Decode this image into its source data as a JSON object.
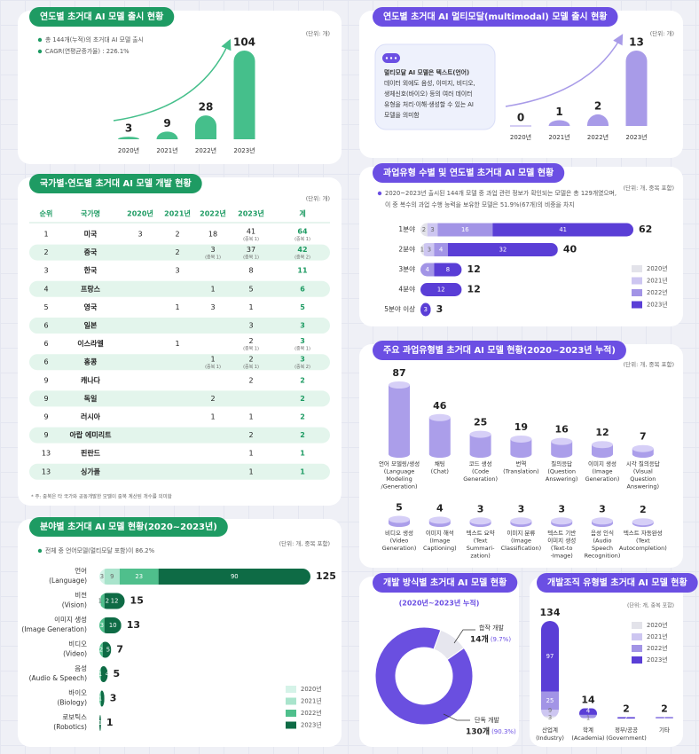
{
  "chart_data": [
    {
      "type": "bar",
      "title": "연도별 초거대 AI 모델 출시 현황",
      "unit": "(단위: 개)",
      "accent": "#1e9b63",
      "notes": [
        "총 144개(누적)의 초거대 AI 모델 출시",
        "CAGR(연평균증가율) : 226.1%"
      ],
      "categories": [
        "2020년",
        "2021년",
        "2022년",
        "2023년"
      ],
      "values": [
        3,
        9,
        28,
        104
      ],
      "color": "#45bf8b"
    },
    {
      "type": "bar",
      "title": "연도별 초거대 AI 멀티모달(multimodal) 모델 출시 현황",
      "unit": "(단위: 개)",
      "accent": "#6b4fe3",
      "info": [
        "멀티모달 AI 모델은 텍스트(언어)",
        "데이터 외에도 음성, 이미지, 비디오,",
        "생체신호(바이오) 등의 여러 데이터",
        "유형을 처리·이해·생성할 수 있는 AI",
        "모델을 의미함"
      ],
      "categories": [
        "2020년",
        "2021년",
        "2022년",
        "2023년"
      ],
      "values": [
        0,
        1,
        2,
        13
      ],
      "color": "#a89be8"
    },
    {
      "type": "stacked-barh",
      "title": "분야별 초거대 AI 모델 현황(2020~2023년)",
      "unit": "(단위: 개, 중복 포함)",
      "accent": "#1e9b63",
      "notes": [
        "전체 중 언어모델(멀티모달 포함)이 86.2%"
      ],
      "categories": [
        "언어",
        "비전",
        "이미지 생성",
        "비디오",
        "음성",
        "바이오",
        "로보틱스"
      ],
      "categories_en": [
        "(Language)",
        "(Vision)",
        "(Image Generation)",
        "(Video)",
        "(Audio & Speech)",
        "(Biology)",
        "(Robotics)"
      ],
      "series": [
        {
          "name": "2020년",
          "color": "#d5f3e8",
          "values": [
            3,
            null,
            null,
            null,
            null,
            null,
            null
          ]
        },
        {
          "name": "2021년",
          "color": "#a9e4cc",
          "values": [
            9,
            1,
            null,
            null,
            null,
            null,
            null
          ]
        },
        {
          "name": "2022년",
          "color": "#4fbf8c",
          "values": [
            23,
            2,
            3,
            2,
            1,
            1,
            null
          ]
        },
        {
          "name": "2023년",
          "color": "#0e6b45",
          "values": [
            90,
            12,
            10,
            5,
            4,
            2,
            1
          ]
        }
      ],
      "totals": [
        125,
        15,
        13,
        7,
        5,
        3,
        1
      ]
    },
    {
      "type": "stacked-barh",
      "title": "과업유형 수별 및 연도별 초거대 AI 모델 현황",
      "unit": "(단위: 개, 중복 포함)",
      "accent": "#6b4fe3",
      "notes": [
        "2020~2023년 출시된 144개 모델 중 과업 관련 정보가 확인되는 모델은 총 129개였으며,",
        "이 중 복수의 과업 수행 능력을 보유한 모델은 51.9%(67개)의 비중을 차지"
      ],
      "categories": [
        "1분야",
        "2분야",
        "3분야",
        "4분야",
        "5분야 이상"
      ],
      "series": [
        {
          "name": "2020년",
          "color": "#e3e3ea",
          "values": [
            2,
            1,
            null,
            null,
            null
          ]
        },
        {
          "name": "2021년",
          "color": "#cdc6f1",
          "values": [
            3,
            3,
            null,
            null,
            null
          ]
        },
        {
          "name": "2022년",
          "color": "#a294e6",
          "values": [
            16,
            4,
            4,
            null,
            null
          ]
        },
        {
          "name": "2023년",
          "color": "#5a3ed6",
          "values": [
            41,
            32,
            8,
            12,
            3
          ]
        }
      ],
      "totals": [
        62,
        40,
        12,
        12,
        3
      ]
    },
    {
      "type": "cylinder",
      "title": "주요 과업유형별 초거대 AI 모델 현황(2020~2023년 누적)",
      "unit": "(단위: 개, 중복 포함)",
      "accent": "#6b4fe3",
      "color": "#ab9eea",
      "top_color": "#d6cff7",
      "categories": [
        [
          "언어 모델링/생성",
          "(Language",
          "Modeling",
          "/Generation)"
        ],
        [
          "채팅",
          "(Chat)"
        ],
        [
          "코드 생성",
          "(Code",
          "Generation)"
        ],
        [
          "번역",
          "(Translation)"
        ],
        [
          "질의응답",
          "(Question",
          "Answering)"
        ],
        [
          "이미지 생성",
          "(Image",
          "Generation)"
        ],
        [
          "시각 질의응답",
          "(Visual",
          "Question",
          "Answering)"
        ],
        [
          "비디오 생성",
          "(Video",
          "Generation)"
        ],
        [
          "이미지 해석",
          "(Image",
          "Captioning)"
        ],
        [
          "텍스트 요약",
          "(Text",
          "Summari-",
          "zation)"
        ],
        [
          "이미지 분류",
          "(Image",
          "Classification)"
        ],
        [
          "텍스트 기반",
          "이미지 생성",
          "(Text-to",
          "-Image)"
        ],
        [
          "음성 인식",
          "(Audio",
          "Speech",
          "Recognition)"
        ],
        [
          "텍스트 자동완성",
          "(Text",
          "Autocompletion)"
        ]
      ],
      "values": [
        87,
        46,
        25,
        19,
        16,
        12,
        7,
        5,
        4,
        3,
        3,
        3,
        3,
        2
      ]
    },
    {
      "type": "donut",
      "title": "개발 방식별 초거대 AI 모델 현황",
      "subtitle": "(2020년~2023년 누적)",
      "accent": "#6b4fe3",
      "categories": [
        "합작 개발",
        "단독 개발"
      ],
      "values": [
        14,
        130
      ],
      "value_labels": [
        "14개",
        "130개"
      ],
      "shares": [
        9.7,
        90.3
      ],
      "share_labels": [
        "(9.7%)",
        "(90.3%)"
      ],
      "colors": [
        "#e6e6ee",
        "#6a4fe0"
      ]
    },
    {
      "type": "stacked-column",
      "title": "개발조직 유형별 초거대 AI 모델 현황",
      "unit": "(단위: 개, 중복 포함)",
      "accent": "#6b4fe3",
      "categories": [
        "산업계",
        "학계",
        "정부/공공",
        "기타"
      ],
      "categories_en": [
        "(Industry)",
        "(Academia)",
        "(Government)",
        null
      ],
      "series": [
        {
          "name": "2020년",
          "color": "#e3e3ea",
          "values": [
            3,
            null,
            null,
            null
          ]
        },
        {
          "name": "2021년",
          "color": "#cdc6f1",
          "values": [
            9,
            1,
            null,
            null
          ]
        },
        {
          "name": "2022년",
          "color": "#a294e6",
          "values": [
            25,
            4,
            null,
            1
          ]
        },
        {
          "name": "2023년",
          "color": "#5a3ed6",
          "values": [
            97,
            9,
            2,
            1
          ]
        }
      ],
      "totals": [
        134,
        14,
        2,
        2
      ]
    }
  ],
  "country_table": {
    "title": "국가별·연도별 초거대 AI 모델 개발 현황",
    "unit": "(단위: 개)",
    "accent": "#1e9b63",
    "header": [
      "순위",
      "국가명",
      "2020년",
      "2021년",
      "2022년",
      "2023년",
      "계"
    ],
    "rows": [
      [
        1,
        "미국",
        3,
        2,
        18,
        {
          "value": 41,
          "note": "(중복 1)"
        },
        {
          "value": 64,
          "note": "(중복 1)"
        }
      ],
      [
        2,
        "중국",
        null,
        2,
        {
          "value": 3,
          "note": "(중복 1)"
        },
        {
          "value": 37,
          "note": "(중복 1)"
        },
        {
          "value": 42,
          "note": "(중복 2)"
        }
      ],
      [
        3,
        "한국",
        null,
        3,
        null,
        8,
        11
      ],
      [
        4,
        "프랑스",
        null,
        null,
        1,
        5,
        6
      ],
      [
        5,
        "영국",
        null,
        1,
        3,
        1,
        5
      ],
      [
        6,
        "일본",
        null,
        null,
        null,
        3,
        3
      ],
      [
        6,
        "이스라엘",
        null,
        1,
        null,
        {
          "value": 2,
          "note": "(중복 1)"
        },
        {
          "value": 3,
          "note": "(중복 1)"
        }
      ],
      [
        6,
        "홍콩",
        null,
        null,
        {
          "value": 1,
          "note": "(중복 1)"
        },
        {
          "value": 2,
          "note": "(중복 1)"
        },
        {
          "value": 3,
          "note": "(중복 2)"
        }
      ],
      [
        9,
        "캐나다",
        null,
        null,
        null,
        2,
        2
      ],
      [
        9,
        "독일",
        null,
        null,
        2,
        null,
        2
      ],
      [
        9,
        "러시아",
        null,
        null,
        1,
        1,
        2
      ],
      [
        9,
        "아랍 에미리트",
        null,
        null,
        null,
        2,
        2
      ],
      [
        13,
        "핀란드",
        null,
        null,
        null,
        1,
        1
      ],
      [
        13,
        "싱가폴",
        null,
        null,
        null,
        1,
        1
      ]
    ],
    "note": "* 주: 중복은 타 국가와 공동개발한 모델이 중복 계산된 개수를 의미함"
  }
}
